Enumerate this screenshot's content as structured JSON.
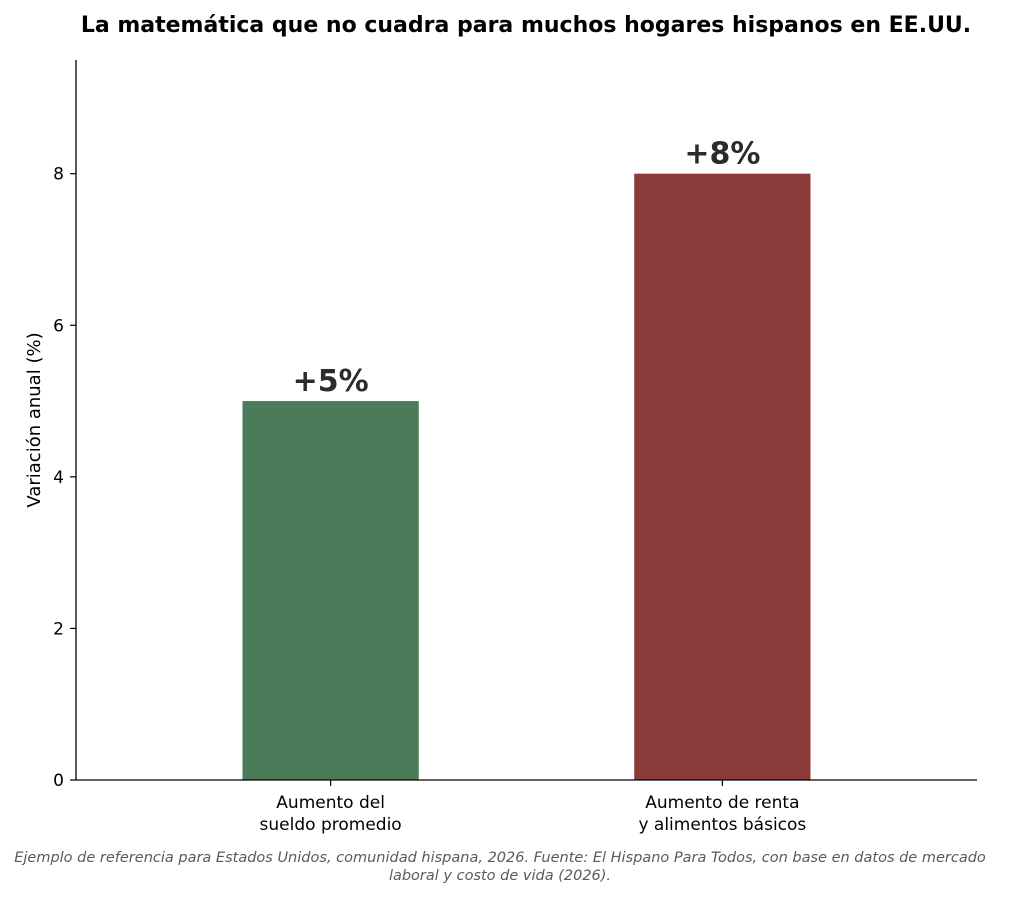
{
  "chart_data": {
    "type": "bar",
    "title": "La matemática que no cuadra para muchos hogares hispanos en EE.UU.",
    "xlabel": "",
    "ylabel": "Variación anual (%)",
    "categories": [
      [
        "Aumento del",
        "sueldo promedio"
      ],
      [
        "Aumento de renta",
        "y alimentos básicos"
      ]
    ],
    "values": [
      5,
      8
    ],
    "data_labels": [
      "+5%",
      "+8%"
    ],
    "colors": [
      "#4a7c59",
      "#8b3a3a"
    ],
    "ylim": [
      0,
      9.5
    ],
    "yticks": [
      0,
      2,
      4,
      6,
      8
    ],
    "grid": false,
    "legend": "none"
  },
  "footnote": "Ejemplo de referencia para Estados Unidos, comunidad hispana, 2026. Fuente: El Hispano Para Todos, con base en datos de mercado laboral y costo de vida (2026)."
}
